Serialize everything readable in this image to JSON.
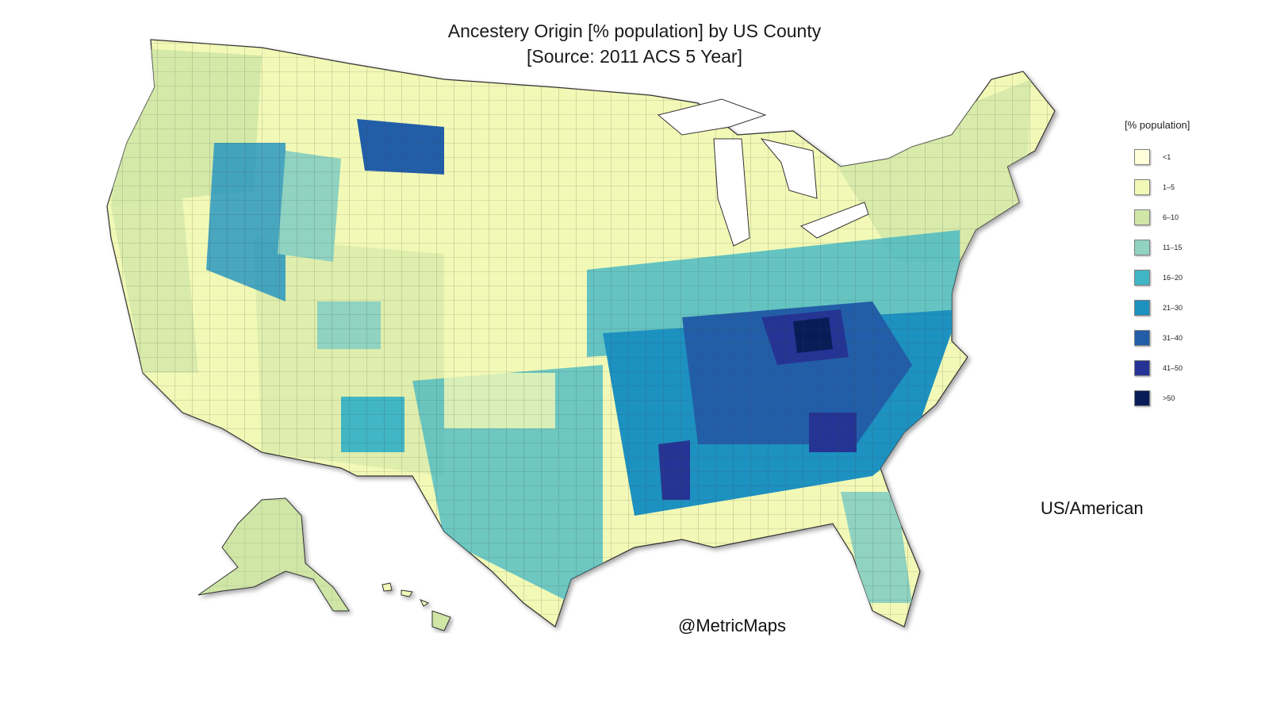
{
  "title_line1": "Ancestery Origin [% population] by US County",
  "title_line2": "[Source: 2011 ACS  5 Year]",
  "subject_label": "US/American",
  "credit": "@MetricMaps",
  "legend": {
    "title": "[% population]",
    "items": [
      {
        "label": "<1",
        "color": "#ffffd9"
      },
      {
        "label": "1–5",
        "color": "#f2f9b6"
      },
      {
        "label": "6–10",
        "color": "#cfe6a6"
      },
      {
        "label": "11–15",
        "color": "#8fd3c0"
      },
      {
        "label": "16–20",
        "color": "#41b6c4"
      },
      {
        "label": "21–30",
        "color": "#1d91c0"
      },
      {
        "label": "31–40",
        "color": "#225ea8"
      },
      {
        "label": "41–50",
        "color": "#253494"
      },
      {
        "label": ">50",
        "color": "#081d58"
      }
    ]
  },
  "map": {
    "region_style": {
      "border_color": "#444444",
      "background_color": "#ffffff"
    }
  }
}
